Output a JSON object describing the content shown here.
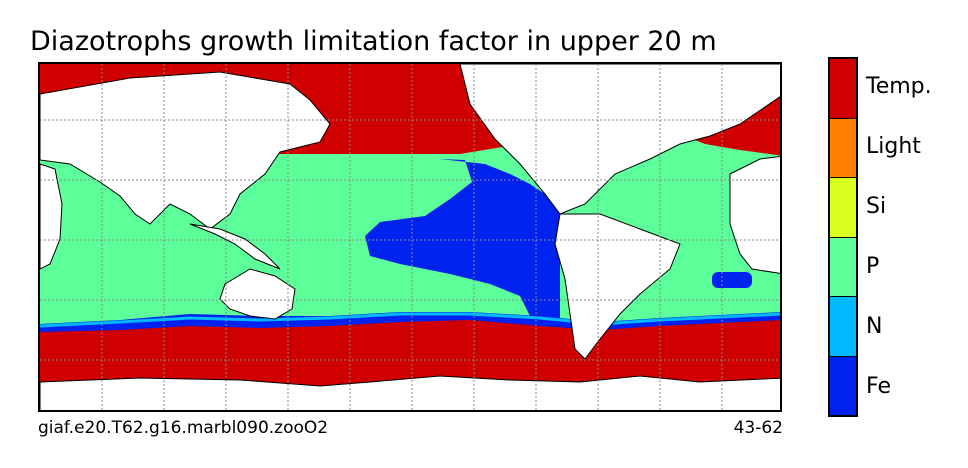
{
  "title": "Diazotrophs growth limitation factor in upper 20 m",
  "footer": {
    "case_name": "giaf.e20.T62.g16.marbl090.zooO2",
    "years": "43-62"
  },
  "colorbar": {
    "categories": [
      {
        "label": "Temp.",
        "color": "#d00000"
      },
      {
        "label": "Light",
        "color": "#ff8000"
      },
      {
        "label": "Si",
        "color": "#d8ff20"
      },
      {
        "label": "P",
        "color": "#5cff9a"
      },
      {
        "label": "N",
        "color": "#00b8ff"
      },
      {
        "label": "Fe",
        "color": "#0022ee"
      }
    ]
  },
  "colors": {
    "land": "#ffffff",
    "coastline": "#000000",
    "grid": "#888888"
  }
}
